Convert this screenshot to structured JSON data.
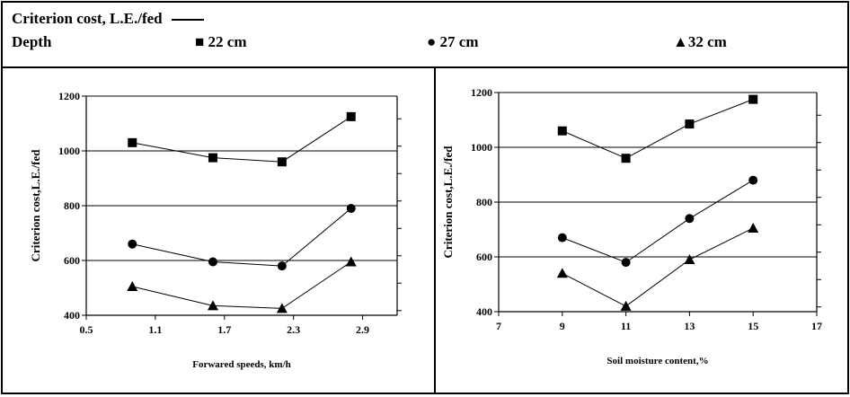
{
  "legend": {
    "criterion_label": "Criterion cost, L.E./fed",
    "depth_label": "Depth",
    "series_22": "22 cm",
    "series_27": "27 cm",
    "series_32": "32 cm",
    "marker_22": "■",
    "marker_27": "●",
    "marker_32": "▲"
  },
  "chart_data": [
    {
      "type": "line",
      "xlabel": "Forwared speeds, km/h",
      "ylabel": "Criterion cost,L.E./fed",
      "x": [
        0.9,
        1.6,
        2.2,
        2.8
      ],
      "xlim": [
        0.5,
        3.2
      ],
      "xticks": [
        "0.5",
        "1.1",
        "1.7",
        "2.3",
        "2.9"
      ],
      "xtick_values": [
        0.5,
        1.1,
        1.7,
        2.3,
        2.9
      ],
      "ylim": [
        400,
        1200
      ],
      "yticks": [
        "400",
        "600",
        "800",
        "1000",
        "1200"
      ],
      "ytick_values": [
        400,
        600,
        800,
        1000,
        1200
      ],
      "series": [
        {
          "name": "22 cm",
          "marker": "square",
          "values": [
            1030,
            975,
            960,
            1125
          ]
        },
        {
          "name": "27 cm",
          "marker": "circle",
          "values": [
            660,
            595,
            580,
            790
          ]
        },
        {
          "name": "32 cm",
          "marker": "triangle",
          "values": [
            505,
            435,
            425,
            595
          ]
        }
      ]
    },
    {
      "type": "line",
      "xlabel": "Soil moisture content,%",
      "ylabel": "Criterion cost,L.E./fed",
      "x": [
        9,
        11,
        13,
        15
      ],
      "xlim": [
        7,
        17
      ],
      "xticks": [
        "7",
        "9",
        "11",
        "13",
        "15",
        "17"
      ],
      "xtick_values": [
        7,
        9,
        11,
        13,
        15,
        17
      ],
      "ylim": [
        400,
        1200
      ],
      "yticks": [
        "400",
        "600",
        "800",
        "1000",
        "1200"
      ],
      "ytick_values": [
        400,
        600,
        800,
        1000,
        1200
      ],
      "series": [
        {
          "name": "22 cm",
          "marker": "square",
          "values": [
            1060,
            960,
            1085,
            1175
          ]
        },
        {
          "name": "27 cm",
          "marker": "circle",
          "values": [
            670,
            580,
            740,
            880
          ]
        },
        {
          "name": "32 cm",
          "marker": "triangle",
          "values": [
            540,
            420,
            590,
            705
          ]
        }
      ]
    }
  ]
}
